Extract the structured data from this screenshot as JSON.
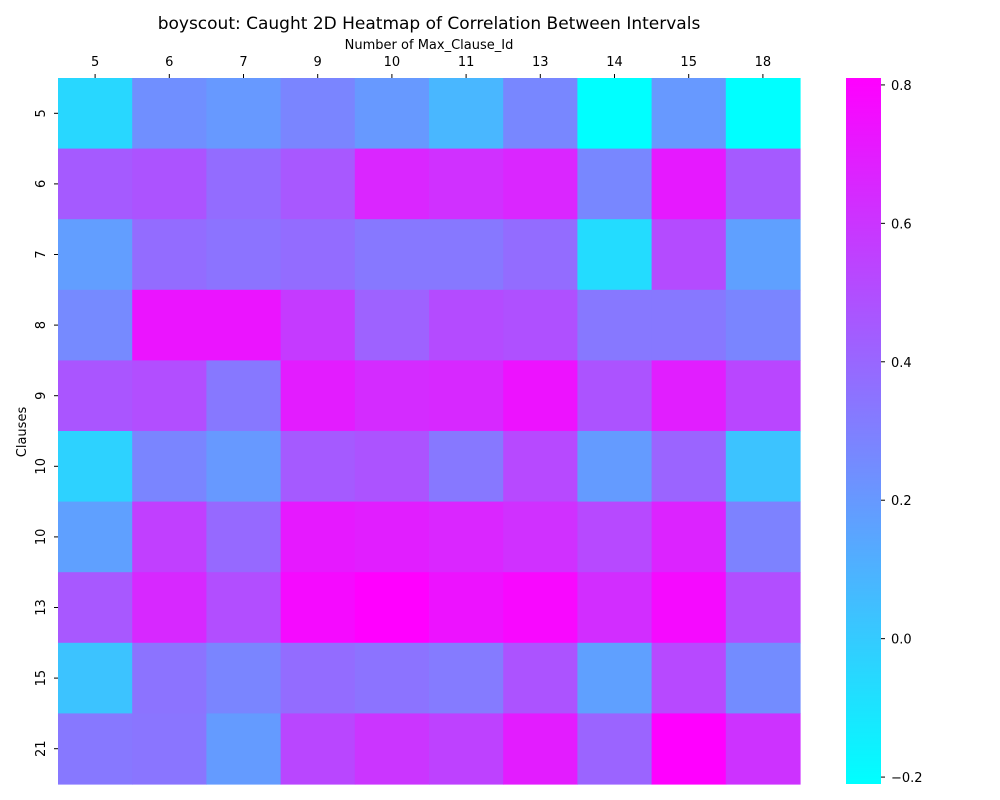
{
  "chart_data": {
    "type": "heatmap",
    "title": "boyscout: Caught 2D Heatmap of Correlation Between Intervals",
    "xlabel": "Number of Max_Clause_Id",
    "ylabel": "Clauses",
    "x_categories": [
      "5",
      "6",
      "7",
      "9",
      "10",
      "11",
      "13",
      "14",
      "15",
      "18"
    ],
    "y_categories": [
      "5",
      "6",
      "7",
      "8",
      "9",
      "10",
      "10",
      "13",
      "15",
      "21"
    ],
    "x_axis_position": "top",
    "colormap": "cool",
    "color_min": "#00ffff",
    "color_max": "#ff00ff",
    "value_range": [
      -0.21,
      0.81
    ],
    "colorbar": {
      "ticks": [
        -0.2,
        0.0,
        0.2,
        0.4,
        0.6,
        0.8
      ],
      "tick_labels": [
        "−0.2",
        "0.0",
        "0.2",
        "0.4",
        "0.6",
        "0.8"
      ],
      "placement": "right"
    },
    "grid": false,
    "values": [
      [
        -0.05,
        0.24,
        0.2,
        0.28,
        0.2,
        0.08,
        0.27,
        -0.21,
        0.2,
        -0.21
      ],
      [
        0.45,
        0.48,
        0.38,
        0.46,
        0.66,
        0.62,
        0.66,
        0.27,
        0.71,
        0.45
      ],
      [
        0.18,
        0.38,
        0.35,
        0.38,
        0.33,
        0.33,
        0.38,
        -0.07,
        0.51,
        0.17
      ],
      [
        0.26,
        0.73,
        0.73,
        0.58,
        0.42,
        0.51,
        0.49,
        0.33,
        0.33,
        0.28
      ],
      [
        0.47,
        0.5,
        0.33,
        0.7,
        0.64,
        0.65,
        0.74,
        0.48,
        0.69,
        0.53
      ],
      [
        -0.03,
        0.28,
        0.2,
        0.45,
        0.48,
        0.33,
        0.52,
        0.19,
        0.41,
        0.03
      ],
      [
        0.17,
        0.56,
        0.39,
        0.71,
        0.69,
        0.66,
        0.62,
        0.52,
        0.67,
        0.29
      ],
      [
        0.46,
        0.65,
        0.5,
        0.77,
        0.81,
        0.74,
        0.78,
        0.63,
        0.77,
        0.5
      ],
      [
        0.03,
        0.35,
        0.28,
        0.38,
        0.35,
        0.32,
        0.48,
        0.17,
        0.52,
        0.25
      ],
      [
        0.33,
        0.34,
        0.19,
        0.53,
        0.6,
        0.55,
        0.7,
        0.41,
        0.81,
        0.61
      ]
    ]
  }
}
